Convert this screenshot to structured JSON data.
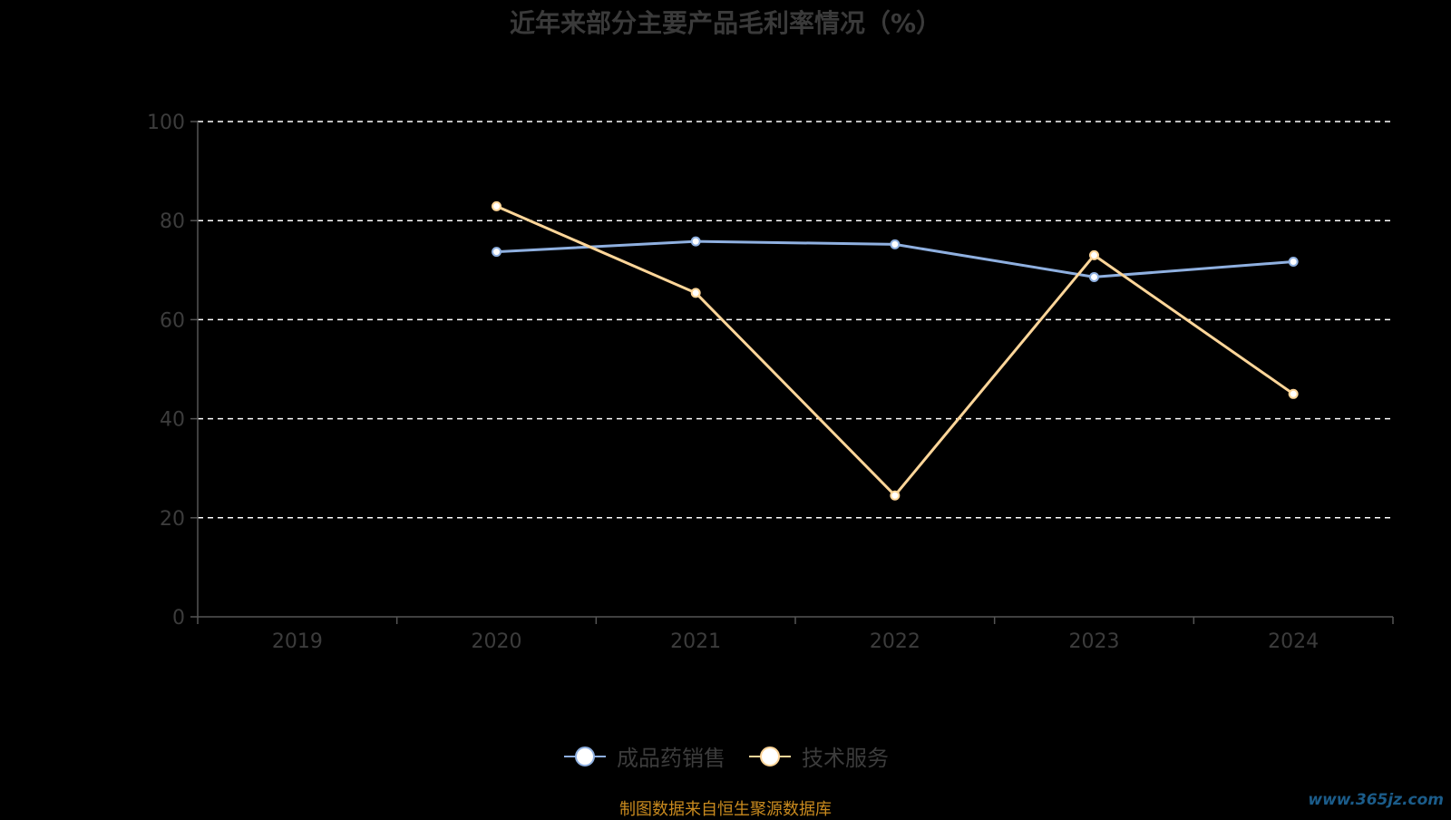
{
  "title": "近年来部分主要产品毛利率情况（%）",
  "source": "制图数据来自恒生聚源数据库",
  "watermark": "www.365jz.com",
  "colors": {
    "background": "#000000",
    "grid": "#ffffff",
    "axis": "#555555",
    "tick_label": "#3c3c3c",
    "title": "#3a3a3a",
    "source": "#c98a1e"
  },
  "chart_data": {
    "type": "line",
    "title": "近年来部分主要产品毛利率情况（%）",
    "categories": [
      "2019",
      "2020",
      "2021",
      "2022",
      "2023",
      "2024"
    ],
    "ylim": [
      0,
      100
    ],
    "yticks": [
      0,
      20,
      40,
      60,
      80,
      100
    ],
    "grid": true,
    "legend_position": "bottom",
    "series": [
      {
        "name": "成品药销售",
        "color": "#8fb0e0",
        "values": [
          null,
          73.7,
          75.8,
          75.2,
          68.6,
          71.7
        ]
      },
      {
        "name": "技术服务",
        "color": "#ffd699",
        "values": [
          null,
          82.9,
          65.4,
          24.5,
          73.0,
          45.0
        ]
      }
    ]
  }
}
